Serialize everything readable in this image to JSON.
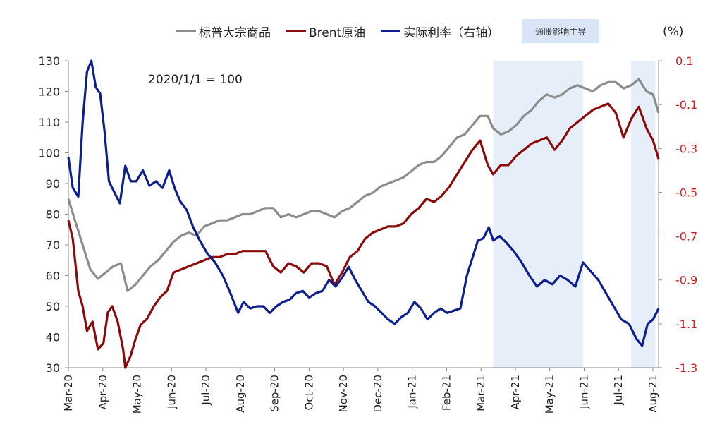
{
  "legend": {
    "series1": "标普大宗商品",
    "series2": "Brent原油",
    "series3": "实际利率（右轴）",
    "shade": "通胀影响主导"
  },
  "unit_label": "(%)",
  "annotation": "2020/1/1 = 100",
  "colors": {
    "series1": "#8c8c8c",
    "series2": "#8b0a0a",
    "series3": "#0d1f8c",
    "shade": "#e6eefa",
    "right_axis": "#d42020"
  },
  "chart_data": {
    "type": "line",
    "x_labels": [
      "Mar-20",
      "Apr-20",
      "May-20",
      "Jun-20",
      "Jul-20",
      "Aug-20",
      "Sep-20",
      "Oct-20",
      "Nov-20",
      "Dec-20",
      "Jan-21",
      "Feb-21",
      "Mar-21",
      "Apr-21",
      "May-21",
      "Jun-21",
      "Jul-21",
      "Aug-21"
    ],
    "left_axis": {
      "min": 30,
      "max": 130,
      "ticks": [
        30,
        40,
        50,
        60,
        70,
        80,
        90,
        100,
        110,
        120,
        130
      ]
    },
    "right_axis": {
      "min": -1.3,
      "max": 0.1,
      "ticks": [
        "0.1",
        "-0.1",
        "-0.3",
        "-0.5",
        "-0.7",
        "-0.9",
        "-1.1",
        "-1.3"
      ],
      "label": "(%)"
    },
    "shaded_ranges": [
      [
        "2021-03-24",
        "2021-06-14"
      ],
      [
        "2021-07-28",
        "2021-08-19"
      ]
    ],
    "series": [
      {
        "name": "标普大宗商品",
        "axis": "left",
        "points": [
          [
            "2020-03-01",
            85
          ],
          [
            "2020-03-07",
            78
          ],
          [
            "2020-03-14",
            70
          ],
          [
            "2020-03-21",
            62
          ],
          [
            "2020-03-28",
            59
          ],
          [
            "2020-04-04",
            61
          ],
          [
            "2020-04-11",
            63
          ],
          [
            "2020-04-18",
            64
          ],
          [
            "2020-04-24",
            55
          ],
          [
            "2020-05-01",
            57
          ],
          [
            "2020-05-08",
            60
          ],
          [
            "2020-05-15",
            63
          ],
          [
            "2020-05-22",
            65
          ],
          [
            "2020-05-29",
            68
          ],
          [
            "2020-06-05",
            71
          ],
          [
            "2020-06-12",
            73
          ],
          [
            "2020-06-19",
            74
          ],
          [
            "2020-06-26",
            73
          ],
          [
            "2020-07-03",
            76
          ],
          [
            "2020-07-10",
            77
          ],
          [
            "2020-07-17",
            78
          ],
          [
            "2020-07-24",
            78
          ],
          [
            "2020-07-31",
            79
          ],
          [
            "2020-08-07",
            80
          ],
          [
            "2020-08-14",
            80
          ],
          [
            "2020-08-21",
            81
          ],
          [
            "2020-08-28",
            82
          ],
          [
            "2020-09-04",
            82
          ],
          [
            "2020-09-11",
            79
          ],
          [
            "2020-09-18",
            80
          ],
          [
            "2020-09-25",
            79
          ],
          [
            "2020-10-02",
            80
          ],
          [
            "2020-10-09",
            81
          ],
          [
            "2020-10-16",
            81
          ],
          [
            "2020-10-23",
            80
          ],
          [
            "2020-10-30",
            79
          ],
          [
            "2020-11-06",
            81
          ],
          [
            "2020-11-13",
            82
          ],
          [
            "2020-11-20",
            84
          ],
          [
            "2020-11-27",
            86
          ],
          [
            "2020-12-04",
            87
          ],
          [
            "2020-12-11",
            89
          ],
          [
            "2020-12-18",
            90
          ],
          [
            "2020-12-25",
            91
          ],
          [
            "2021-01-01",
            92
          ],
          [
            "2021-01-08",
            94
          ],
          [
            "2021-01-15",
            96
          ],
          [
            "2021-01-22",
            97
          ],
          [
            "2021-01-29",
            97
          ],
          [
            "2021-02-05",
            99
          ],
          [
            "2021-02-12",
            102
          ],
          [
            "2021-02-19",
            105
          ],
          [
            "2021-02-26",
            106
          ],
          [
            "2021-03-05",
            109
          ],
          [
            "2021-03-12",
            112
          ],
          [
            "2021-03-19",
            112
          ],
          [
            "2021-03-24",
            108
          ],
          [
            "2021-03-31",
            106
          ],
          [
            "2021-04-07",
            107
          ],
          [
            "2021-04-14",
            109
          ],
          [
            "2021-04-21",
            112
          ],
          [
            "2021-04-28",
            114
          ],
          [
            "2021-05-05",
            117
          ],
          [
            "2021-05-12",
            119
          ],
          [
            "2021-05-19",
            118
          ],
          [
            "2021-05-26",
            119
          ],
          [
            "2021-06-02",
            121
          ],
          [
            "2021-06-09",
            122
          ],
          [
            "2021-06-16",
            121
          ],
          [
            "2021-06-23",
            120
          ],
          [
            "2021-06-30",
            122
          ],
          [
            "2021-07-07",
            123
          ],
          [
            "2021-07-14",
            123
          ],
          [
            "2021-07-21",
            121
          ],
          [
            "2021-07-28",
            122
          ],
          [
            "2021-08-04",
            124
          ],
          [
            "2021-08-11",
            120
          ],
          [
            "2021-08-17",
            119
          ],
          [
            "2021-08-22",
            113
          ]
        ]
      },
      {
        "name": "Brent原油",
        "axis": "left",
        "points": [
          [
            "2020-03-01",
            78
          ],
          [
            "2020-03-05",
            72
          ],
          [
            "2020-03-10",
            55
          ],
          [
            "2020-03-14",
            50
          ],
          [
            "2020-03-18",
            42
          ],
          [
            "2020-03-23",
            45
          ],
          [
            "2020-03-28",
            36
          ],
          [
            "2020-04-02",
            38
          ],
          [
            "2020-04-06",
            48
          ],
          [
            "2020-04-10",
            50
          ],
          [
            "2020-04-15",
            45
          ],
          [
            "2020-04-20",
            36
          ],
          [
            "2020-04-22",
            30
          ],
          [
            "2020-04-27",
            34
          ],
          [
            "2020-05-01",
            39
          ],
          [
            "2020-05-06",
            44
          ],
          [
            "2020-05-12",
            46
          ],
          [
            "2020-05-18",
            50
          ],
          [
            "2020-05-24",
            53
          ],
          [
            "2020-05-30",
            55
          ],
          [
            "2020-06-05",
            61
          ],
          [
            "2020-06-12",
            62
          ],
          [
            "2020-06-19",
            63
          ],
          [
            "2020-06-26",
            64
          ],
          [
            "2020-07-03",
            65
          ],
          [
            "2020-07-10",
            66
          ],
          [
            "2020-07-17",
            66
          ],
          [
            "2020-07-24",
            67
          ],
          [
            "2020-07-31",
            67
          ],
          [
            "2020-08-07",
            68
          ],
          [
            "2020-08-14",
            68
          ],
          [
            "2020-08-21",
            68
          ],
          [
            "2020-08-28",
            68
          ],
          [
            "2020-09-04",
            63
          ],
          [
            "2020-09-11",
            61
          ],
          [
            "2020-09-18",
            64
          ],
          [
            "2020-09-25",
            63
          ],
          [
            "2020-10-02",
            61
          ],
          [
            "2020-10-09",
            64
          ],
          [
            "2020-10-16",
            64
          ],
          [
            "2020-10-23",
            63
          ],
          [
            "2020-10-30",
            57
          ],
          [
            "2020-11-06",
            61
          ],
          [
            "2020-11-13",
            66
          ],
          [
            "2020-11-20",
            68
          ],
          [
            "2020-11-27",
            72
          ],
          [
            "2020-12-04",
            74
          ],
          [
            "2020-12-11",
            75
          ],
          [
            "2020-12-18",
            76
          ],
          [
            "2020-12-25",
            76
          ],
          [
            "2021-01-01",
            77
          ],
          [
            "2021-01-08",
            80
          ],
          [
            "2021-01-15",
            82
          ],
          [
            "2021-01-22",
            85
          ],
          [
            "2021-01-29",
            84
          ],
          [
            "2021-02-05",
            86
          ],
          [
            "2021-02-12",
            89
          ],
          [
            "2021-02-19",
            93
          ],
          [
            "2021-02-26",
            97
          ],
          [
            "2021-03-05",
            101
          ],
          [
            "2021-03-12",
            104
          ],
          [
            "2021-03-19",
            96
          ],
          [
            "2021-03-24",
            93
          ],
          [
            "2021-03-31",
            96
          ],
          [
            "2021-04-07",
            96
          ],
          [
            "2021-04-14",
            99
          ],
          [
            "2021-04-21",
            101
          ],
          [
            "2021-04-28",
            103
          ],
          [
            "2021-05-05",
            104
          ],
          [
            "2021-05-12",
            105
          ],
          [
            "2021-05-19",
            101
          ],
          [
            "2021-05-26",
            104
          ],
          [
            "2021-06-02",
            108
          ],
          [
            "2021-06-09",
            110
          ],
          [
            "2021-06-16",
            112
          ],
          [
            "2021-06-23",
            114
          ],
          [
            "2021-06-30",
            115
          ],
          [
            "2021-07-07",
            116
          ],
          [
            "2021-07-14",
            113
          ],
          [
            "2021-07-21",
            105
          ],
          [
            "2021-07-28",
            111
          ],
          [
            "2021-08-04",
            115
          ],
          [
            "2021-08-11",
            108
          ],
          [
            "2021-08-17",
            104
          ],
          [
            "2021-08-22",
            98
          ]
        ]
      },
      {
        "name": "实际利率（右轴）",
        "axis": "right",
        "points": [
          [
            "2020-03-01",
            -0.34
          ],
          [
            "2020-03-05",
            -0.48
          ],
          [
            "2020-03-10",
            -0.52
          ],
          [
            "2020-03-14",
            -0.18
          ],
          [
            "2020-03-18",
            0.05
          ],
          [
            "2020-03-22",
            0.1
          ],
          [
            "2020-03-26",
            -0.02
          ],
          [
            "2020-03-30",
            -0.05
          ],
          [
            "2020-04-03",
            -0.22
          ],
          [
            "2020-04-07",
            -0.45
          ],
          [
            "2020-04-12",
            -0.5
          ],
          [
            "2020-04-17",
            -0.55
          ],
          [
            "2020-04-22",
            -0.38
          ],
          [
            "2020-04-27",
            -0.45
          ],
          [
            "2020-05-02",
            -0.45
          ],
          [
            "2020-05-08",
            -0.4
          ],
          [
            "2020-05-14",
            -0.47
          ],
          [
            "2020-05-20",
            -0.45
          ],
          [
            "2020-05-26",
            -0.48
          ],
          [
            "2020-06-01",
            -0.4
          ],
          [
            "2020-06-06",
            -0.48
          ],
          [
            "2020-06-11",
            -0.54
          ],
          [
            "2020-06-17",
            -0.58
          ],
          [
            "2020-06-23",
            -0.66
          ],
          [
            "2020-06-29",
            -0.72
          ],
          [
            "2020-07-06",
            -0.78
          ],
          [
            "2020-07-13",
            -0.82
          ],
          [
            "2020-07-20",
            -0.88
          ],
          [
            "2020-07-27",
            -0.96
          ],
          [
            "2020-08-03",
            -1.05
          ],
          [
            "2020-08-08",
            -1.0
          ],
          [
            "2020-08-14",
            -1.03
          ],
          [
            "2020-08-20",
            -1.02
          ],
          [
            "2020-08-26",
            -1.02
          ],
          [
            "2020-09-01",
            -1.05
          ],
          [
            "2020-09-07",
            -1.02
          ],
          [
            "2020-09-13",
            -1.0
          ],
          [
            "2020-09-19",
            -0.99
          ],
          [
            "2020-09-25",
            -0.96
          ],
          [
            "2020-10-01",
            -0.95
          ],
          [
            "2020-10-07",
            -0.98
          ],
          [
            "2020-10-13",
            -0.96
          ],
          [
            "2020-10-19",
            -0.95
          ],
          [
            "2020-10-25",
            -0.9
          ],
          [
            "2020-10-31",
            -0.93
          ],
          [
            "2020-11-06",
            -0.89
          ],
          [
            "2020-11-12",
            -0.84
          ],
          [
            "2020-11-18",
            -0.9
          ],
          [
            "2020-11-24",
            -0.95
          ],
          [
            "2020-11-30",
            -1.0
          ],
          [
            "2020-12-06",
            -1.02
          ],
          [
            "2020-12-12",
            -1.05
          ],
          [
            "2020-12-18",
            -1.08
          ],
          [
            "2020-12-24",
            -1.1
          ],
          [
            "2020-12-30",
            -1.07
          ],
          [
            "2021-01-05",
            -1.05
          ],
          [
            "2021-01-11",
            -1.0
          ],
          [
            "2021-01-17",
            -1.03
          ],
          [
            "2021-01-23",
            -1.08
          ],
          [
            "2021-01-29",
            -1.05
          ],
          [
            "2021-02-04",
            -1.03
          ],
          [
            "2021-02-10",
            -1.05
          ],
          [
            "2021-02-16",
            -1.04
          ],
          [
            "2021-02-22",
            -1.03
          ],
          [
            "2021-02-28",
            -0.88
          ],
          [
            "2021-03-05",
            -0.8
          ],
          [
            "2021-03-10",
            -0.72
          ],
          [
            "2021-03-15",
            -0.71
          ],
          [
            "2021-03-20",
            -0.66
          ],
          [
            "2021-03-24",
            -0.72
          ],
          [
            "2021-03-30",
            -0.7
          ],
          [
            "2021-04-05",
            -0.73
          ],
          [
            "2021-04-12",
            -0.77
          ],
          [
            "2021-04-19",
            -0.82
          ],
          [
            "2021-04-26",
            -0.88
          ],
          [
            "2021-05-03",
            -0.93
          ],
          [
            "2021-05-10",
            -0.9
          ],
          [
            "2021-05-17",
            -0.92
          ],
          [
            "2021-05-24",
            -0.88
          ],
          [
            "2021-05-31",
            -0.9
          ],
          [
            "2021-06-07",
            -0.93
          ],
          [
            "2021-06-14",
            -0.82
          ],
          [
            "2021-06-21",
            -0.86
          ],
          [
            "2021-06-28",
            -0.9
          ],
          [
            "2021-07-05",
            -0.96
          ],
          [
            "2021-07-12",
            -1.02
          ],
          [
            "2021-07-19",
            -1.08
          ],
          [
            "2021-07-26",
            -1.1
          ],
          [
            "2021-08-02",
            -1.17
          ],
          [
            "2021-08-07",
            -1.2
          ],
          [
            "2021-08-12",
            -1.1
          ],
          [
            "2021-08-17",
            -1.08
          ],
          [
            "2021-08-22",
            -1.03
          ]
        ]
      }
    ]
  }
}
